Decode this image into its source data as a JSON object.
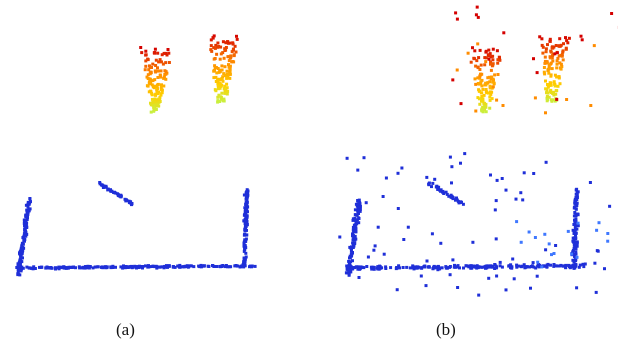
{
  "panels": [
    {
      "caption": "(a)",
      "description_colors": {
        "hot": "#d40000",
        "mid": "#ff8c00",
        "warm": "#ffd000",
        "tip": "#c8f040",
        "cold": "#1f2fd8"
      }
    },
    {
      "caption": "(b)",
      "description_colors": {
        "hot": "#d40000",
        "mid": "#ff8c00",
        "warm": "#ffd000",
        "tip": "#c8f040",
        "cold": "#1f2fd8"
      }
    }
  ],
  "colors": {
    "background": "#ffffff",
    "hot": "#d40000",
    "mid": "#ff8c00",
    "warm": "#ffd000",
    "tip": "#c8f040",
    "cold": "#1f2fd8",
    "cold_light": "#3f78ff"
  }
}
